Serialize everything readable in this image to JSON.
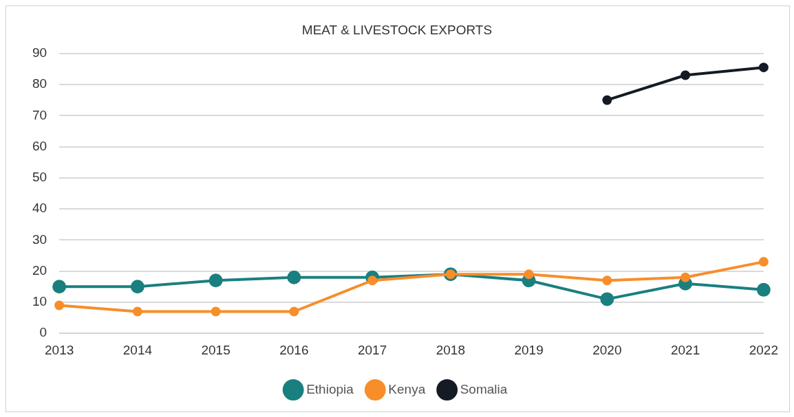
{
  "chart_data": {
    "type": "line",
    "title": "MEAT & LIVESTOCK EXPORTS",
    "categories": [
      "2013",
      "2014",
      "2015",
      "2016",
      "2017",
      "2018",
      "2019",
      "2020",
      "2021",
      "2022"
    ],
    "series": [
      {
        "name": "Ethiopia",
        "color": "#1a7f7f",
        "values": [
          15,
          15,
          17,
          18,
          18,
          19,
          17,
          11,
          16,
          14
        ]
      },
      {
        "name": "Kenya",
        "color": "#f78e2a",
        "values": [
          9,
          7,
          7,
          7,
          17,
          19,
          19,
          17,
          18,
          23
        ]
      },
      {
        "name": "Somalia",
        "color": "#141b24",
        "values": [
          null,
          null,
          null,
          null,
          null,
          null,
          null,
          75,
          83,
          85.5
        ]
      }
    ],
    "ylim": [
      0,
      90
    ],
    "yticks": [
      0,
      10,
      20,
      30,
      40,
      50,
      60,
      70,
      80,
      90
    ],
    "grid": "y",
    "legend": "bottom",
    "marker": "circle",
    "line_style": "solid"
  }
}
